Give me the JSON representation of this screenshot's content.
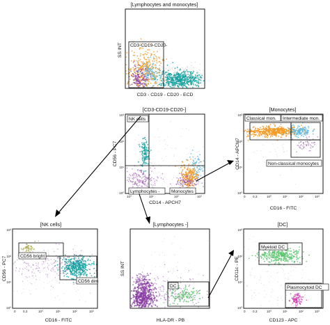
{
  "panels": {
    "lymph_mono": {
      "title": "[Lymphocytes and monocytes]",
      "xlabel": "CD3 - CD19 - CD20 - ECD",
      "ylabel": "SS INT",
      "gates": [
        "CD3-CD19-CD20-"
      ]
    },
    "cd3neg": {
      "title": "[CD3-CD19-CD20-]",
      "xlabel": "CD14 - APCH7",
      "ylabel": "CD56 - PC7",
      "gates": [
        "NK cells",
        "Lymphocytes -",
        "Monocytes"
      ],
      "ticks": {
        "x": [
          "10⁰",
          "10¹",
          "10²",
          "10³"
        ],
        "y": [
          "10⁰",
          "10¹",
          "10²",
          "10³"
        ]
      }
    },
    "monocytes": {
      "title": "[Monocytes]",
      "xlabel": "CD16 - FITC",
      "ylabel": "CD14 - APCH7",
      "gates": [
        "Classical mon.",
        "Intermediate mon.",
        "Non-classical monocytes"
      ],
      "ticks": {
        "x": [
          "0",
          "0,3",
          "10⁰",
          "10¹",
          "10²",
          "10³"
        ],
        "y": [
          "10⁰",
          "10¹",
          "10²",
          "10³"
        ]
      }
    },
    "nk": {
      "title": "[NK cells]",
      "xlabel": "CD16 - FITC",
      "ylabel": "CD56 - PC7",
      "gates": [
        "CD56 bright",
        "CD56 dim"
      ],
      "ticks": {
        "x": [
          "0",
          "0,3",
          "10⁰",
          "10¹",
          "10²",
          "10³"
        ],
        "y": [
          "10⁰",
          "10¹",
          "10²",
          "10³"
        ]
      }
    },
    "lymph_neg": {
      "title": "[Lymphocytes -]",
      "xlabel": "HLA-DR - PB",
      "ylabel": "SS INT",
      "gates": [
        "DC"
      ]
    },
    "dc": {
      "title": "[DC]",
      "xlabel": "CD123 - APC",
      "ylabel": "CD11c - PE",
      "gates": [
        "Myeloid DC",
        "Plasmocytoid DC"
      ],
      "ticks": {
        "x": [
          "0",
          "0,3",
          "10⁰",
          "10¹",
          "10²",
          "10³"
        ],
        "y": [
          "10⁰",
          "10¹",
          "10²",
          "10³"
        ]
      }
    }
  },
  "colors": {
    "orange": "#f39a22",
    "teal": "#14a2a0",
    "purple": "#8a3ea3",
    "lightblue": "#5bb7e0",
    "green": "#5cc46e",
    "magenta": "#d43fb4",
    "olive": "#b6b35a",
    "grey": "#9a9a9a"
  }
}
